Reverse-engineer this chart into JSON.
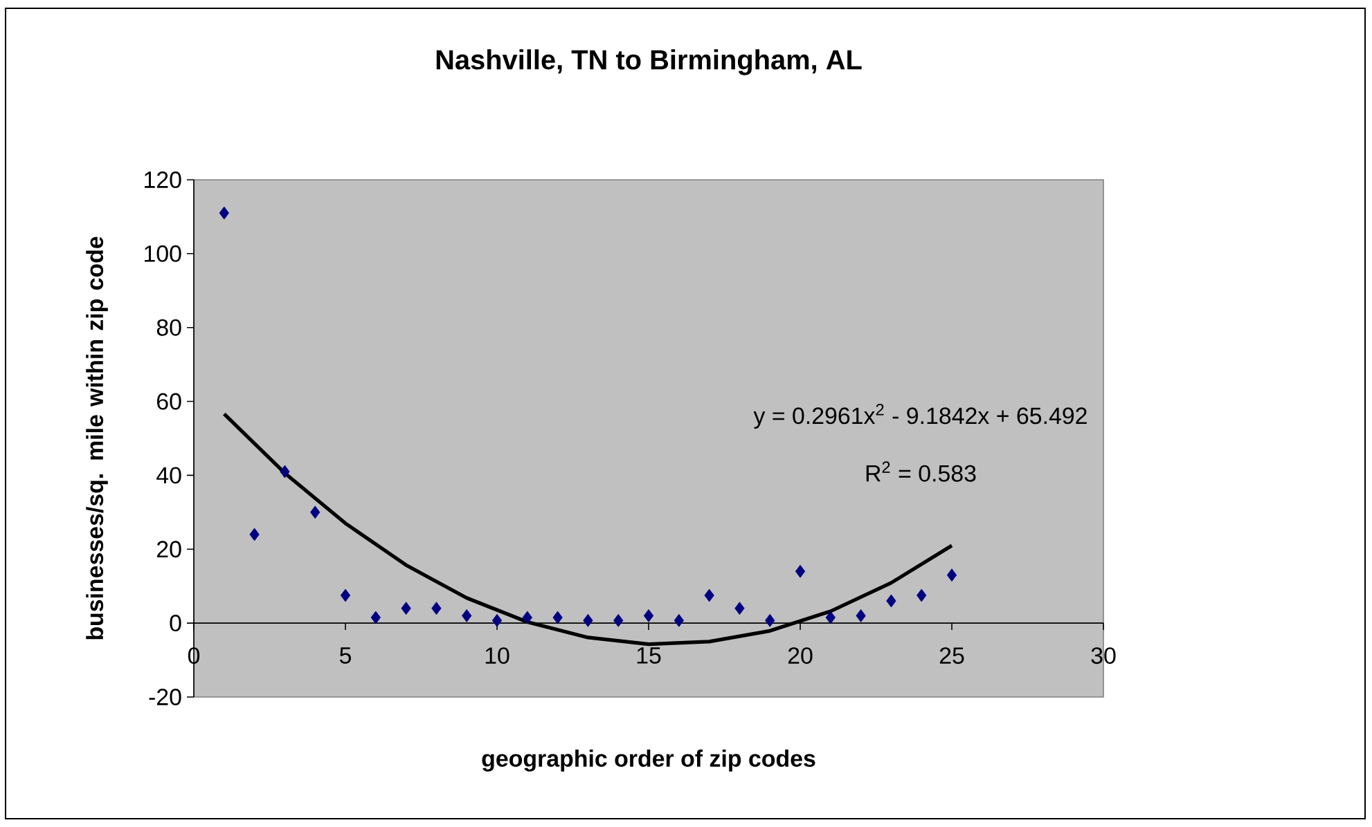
{
  "chart_data": {
    "type": "scatter",
    "title": "Nashville, TN to Birmingham, AL",
    "xlabel": "geographic order of zip codes",
    "ylabel": "businesses/sq. mile within zip code",
    "xlim": [
      0,
      30
    ],
    "xticks": [
      0,
      5,
      10,
      15,
      20,
      25,
      30
    ],
    "ylim": [
      -20,
      120
    ],
    "yticks": [
      -20,
      0,
      20,
      40,
      60,
      80,
      100,
      120
    ],
    "grid": false,
    "marker": "diamond",
    "annotations": [
      "y = 0.2961x$^{2}$ - 9.1842x + 65.492",
      "R$^{2}$ = 0.583"
    ],
    "series": [
      {
        "color": "#000080",
        "x": [
          1,
          2,
          3,
          4,
          5,
          6,
          7,
          8,
          9,
          10,
          11,
          12,
          13,
          14,
          15,
          16,
          17,
          18,
          19,
          20,
          21,
          22,
          23,
          24,
          25
        ],
        "values": [
          111,
          24,
          41,
          30,
          7.5,
          1.5,
          4,
          4,
          2,
          0.7,
          1.5,
          1.5,
          0.7,
          0.7,
          2,
          0.7,
          7.5,
          4,
          0.7,
          14,
          1.5,
          2,
          6,
          7.5,
          13
        ]
      },
      {
        "type": "line",
        "color": "#000000",
        "marker": "none",
        "line_style": "solid",
        "x": [
          1,
          3,
          5,
          7,
          9,
          11,
          13,
          15,
          17,
          19,
          21,
          23,
          25
        ],
        "values": [
          56.6,
          40.6,
          27,
          15.7,
          6.8,
          0.3,
          -3.9,
          -5.7,
          -5,
          -2.1,
          3.2,
          10.9,
          21
        ]
      }
    ]
  }
}
